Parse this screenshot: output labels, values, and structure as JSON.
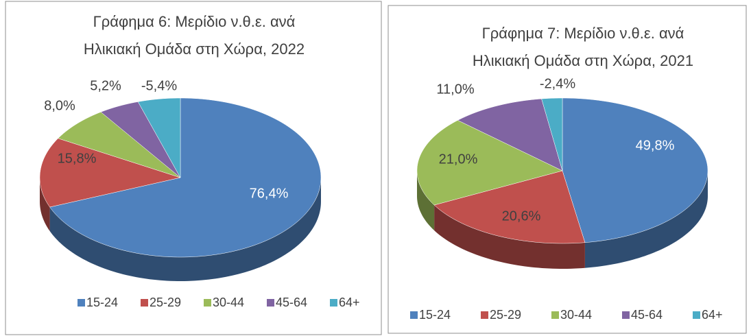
{
  "chart_data": [
    {
      "type": "pie",
      "title": [
        "Γράφημα 6: Μερίδιο ν.θ.ε. ανά",
        "Ηλικιακή Ομάδα στη Χώρα, 2022"
      ],
      "categories": [
        "15-24",
        "25-29",
        "30-44",
        "45-64",
        "64+"
      ],
      "values": [
        76.4,
        15.8,
        8.0,
        5.2,
        -5.4
      ],
      "value_labels": [
        "76,4%",
        "15,8%",
        "8,0%",
        "5,2%",
        "-5,4%"
      ],
      "colors": [
        "#4f81bd",
        "#c0504d",
        "#9bbb59",
        "#8064a2",
        "#4bacc6"
      ],
      "legend": "bottom"
    },
    {
      "type": "pie",
      "title": [
        "Γράφημα 7: Μερίδιο ν.θ.ε. ανά",
        "Ηλικιακή Ομάδα στη Χώρα, 2021"
      ],
      "categories": [
        "15-24",
        "25-29",
        "30-44",
        "45-64",
        "64+"
      ],
      "values": [
        49.8,
        20.6,
        21.0,
        11.0,
        -2.4
      ],
      "value_labels": [
        "49,8%",
        "20,6%",
        "21,0%",
        "11,0%",
        "-2,4%"
      ],
      "colors": [
        "#4f81bd",
        "#c0504d",
        "#9bbb59",
        "#8064a2",
        "#4bacc6"
      ],
      "legend": "bottom"
    }
  ]
}
